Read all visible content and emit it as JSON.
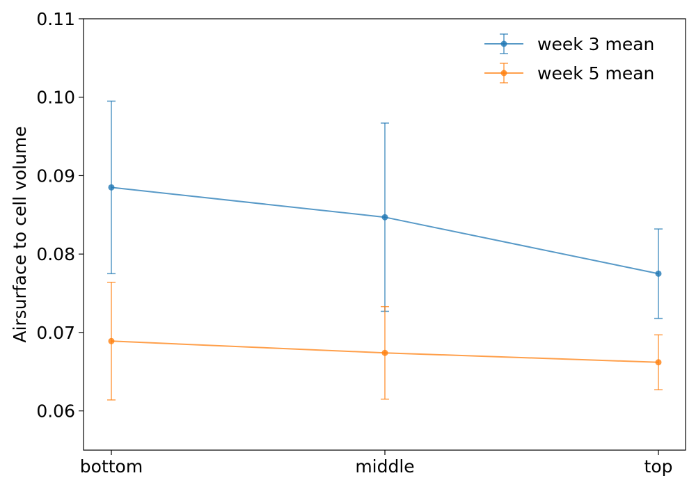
{
  "chart_data": {
    "type": "line",
    "title": "",
    "xlabel": "",
    "ylabel": "Airsurface to cell volume",
    "categories": [
      "bottom",
      "middle",
      "top"
    ],
    "ylim": [
      0.055,
      0.11
    ],
    "yticks": [
      0.06,
      0.07,
      0.08,
      0.09,
      0.1,
      0.11
    ],
    "ytick_labels": [
      "0.06",
      "0.07",
      "0.08",
      "0.09",
      "0.10",
      "0.11"
    ],
    "grid": false,
    "legend_position": "top-right",
    "series": [
      {
        "name": "week 3 mean",
        "color": "#1f77b4",
        "values": [
          0.0885,
          0.0847,
          0.0775
        ],
        "error": [
          0.011,
          0.012,
          0.0057
        ]
      },
      {
        "name": "week 5 mean",
        "color": "#ff7f0e",
        "values": [
          0.0689,
          0.0674,
          0.0662
        ],
        "error": [
          0.0075,
          0.0059,
          0.0035
        ]
      }
    ]
  }
}
